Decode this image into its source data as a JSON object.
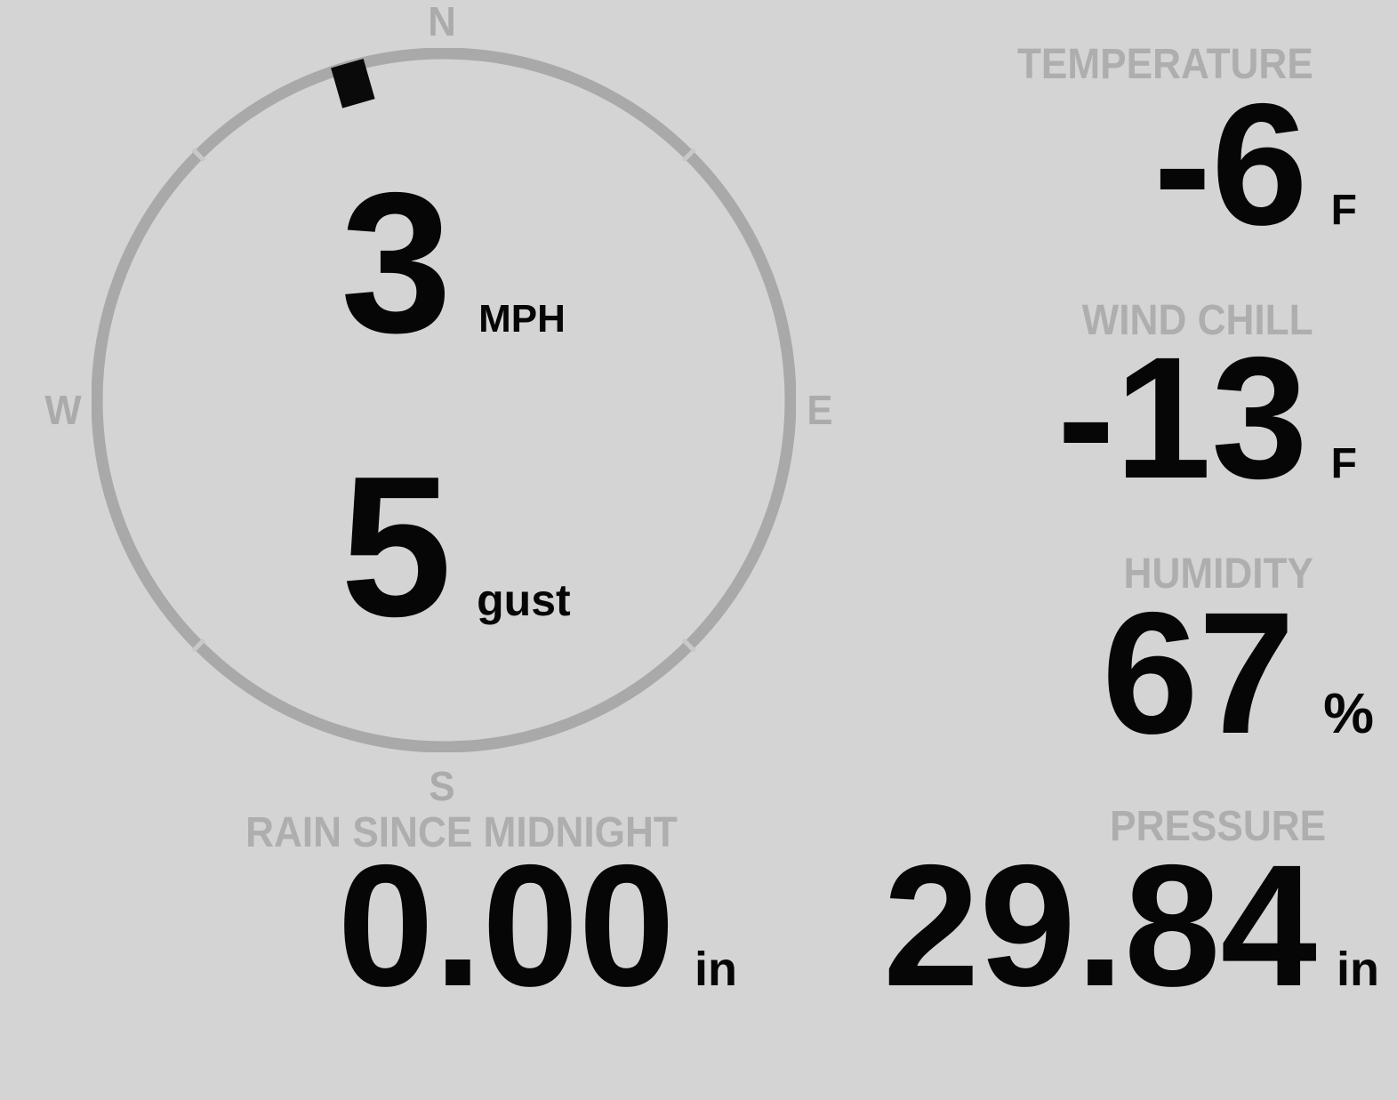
{
  "theme": {
    "background": "#d4d4d4",
    "muted_gray": "#ababab",
    "value_black": "#060606"
  },
  "wind_compass": {
    "cardinal": {
      "north": "N",
      "east": "E",
      "south": "S",
      "west": "W"
    },
    "speed": {
      "value": "3",
      "unit": "MPH"
    },
    "gust": {
      "value": "5",
      "unit": "gust"
    },
    "direction_degrees": 344
  },
  "temperature": {
    "label": "TEMPERATURE",
    "value": "-6",
    "unit": "F"
  },
  "wind_chill": {
    "label": "WIND CHILL",
    "value": "-13",
    "unit": "F"
  },
  "humidity": {
    "label": "HUMIDITY",
    "value": "67",
    "unit": "%"
  },
  "rain": {
    "label": "RAIN SINCE MIDNIGHT",
    "value": "0.00",
    "unit": "in"
  },
  "pressure": {
    "label": "PRESSURE",
    "value": "29.84",
    "unit": "in"
  }
}
